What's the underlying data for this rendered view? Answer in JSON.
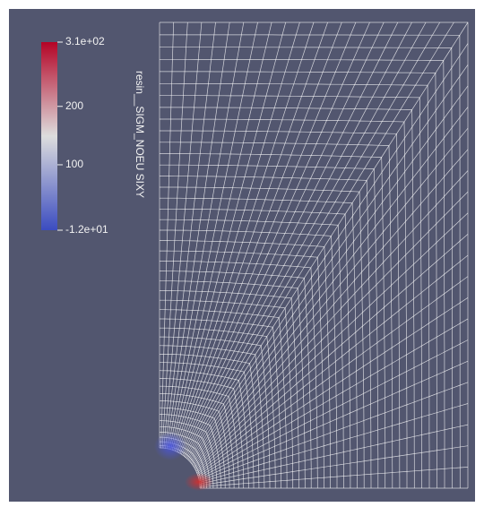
{
  "colorbar": {
    "title": "resin__SIGM_NOEU SIXY",
    "range": [
      -12,
      310
    ],
    "ticks": [
      {
        "value": 310,
        "label": "3.1e+02"
      },
      {
        "value": 200,
        "label": "200"
      },
      {
        "value": 100,
        "label": "100"
      },
      {
        "value": -12,
        "label": "-1.2e+01"
      }
    ]
  }
}
